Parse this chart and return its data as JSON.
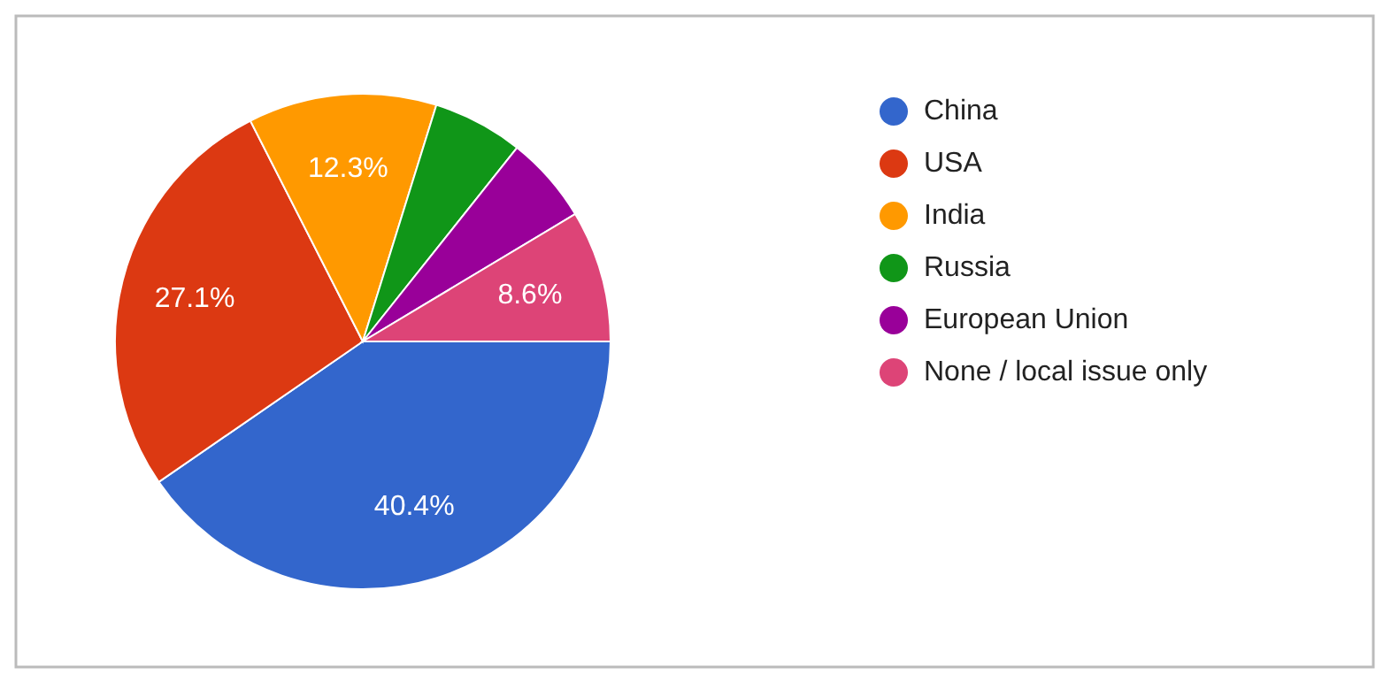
{
  "chart_data": {
    "type": "pie",
    "categories": [
      "China",
      "USA",
      "India",
      "Russia",
      "European Union",
      "None / local issue only"
    ],
    "values": [
      40.4,
      27.1,
      12.3,
      5.9,
      5.7,
      8.6
    ],
    "value_labels": [
      "40.4%",
      "27.1%",
      "12.3%",
      null,
      null,
      "8.6%"
    ],
    "colors": [
      "#3366cc",
      "#dc3912",
      "#ff9900",
      "#109618",
      "#990099",
      "#dd4477"
    ],
    "legend": "right"
  }
}
